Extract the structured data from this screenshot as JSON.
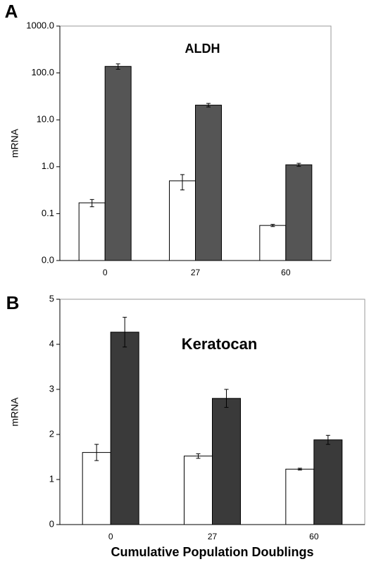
{
  "chart_data": [
    {
      "type": "bar",
      "panel_label": "A",
      "title": "ALDH",
      "y_label": "mRNA",
      "categories": [
        "0",
        "27",
        "60"
      ],
      "log_y": true,
      "ylim": [
        0.01,
        1000
      ],
      "yticks": [
        {
          "value": 0.01,
          "label": "0.0"
        },
        0.1,
        {
          "value": 1,
          "label": "1.0"
        },
        {
          "value": 10,
          "label": "10.0"
        },
        {
          "value": 100,
          "label": "100.0"
        },
        {
          "value": 1000,
          "label": "1000.0"
        }
      ],
      "series": [
        {
          "color": "#ffffff",
          "values": [
            0.17,
            0.5,
            0.056
          ],
          "errors": [
            0.03,
            0.18,
            0.003
          ]
        },
        {
          "color": "#555555",
          "values": [
            138,
            20.6,
            1.1
          ],
          "errors": [
            18,
            1.8,
            0.08
          ]
        }
      ]
    },
    {
      "type": "bar",
      "panel_label": "B",
      "title": "Keratocan",
      "y_label": "mRNA",
      "x_label": "Cumulative Population Doublings",
      "categories": [
        "0",
        "27",
        "60"
      ],
      "log_y": false,
      "ylim": [
        0,
        5
      ],
      "yticks": [
        0,
        1,
        2,
        3,
        4,
        5
      ],
      "series": [
        {
          "color": "#ffffff",
          "values": [
            1.6,
            1.52,
            1.23
          ],
          "errors": [
            0.18,
            0.05,
            0.02
          ]
        },
        {
          "color": "#3a3a3a",
          "values": [
            4.27,
            2.8,
            1.88
          ],
          "errors": [
            0.33,
            0.2,
            0.1
          ]
        }
      ]
    }
  ]
}
